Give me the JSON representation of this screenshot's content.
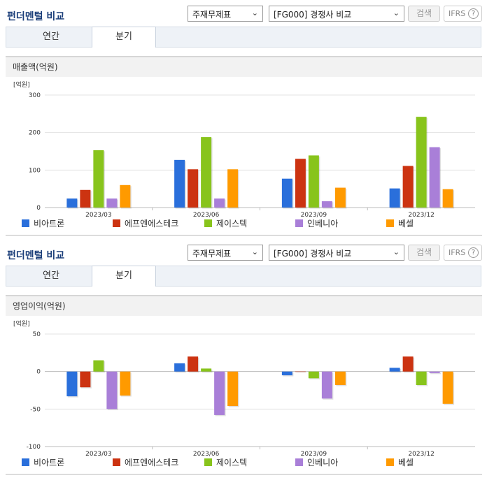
{
  "panels": [
    {
      "title": "펀더멘털 비교",
      "select1": "주재무제표",
      "select2": "[FG000] 경쟁사 비교",
      "search_label": "검색",
      "ifrs_label": "IFRS",
      "tabs": [
        "연간",
        "분기"
      ],
      "active_tab": "분기",
      "subtitle": "매출액(억원)"
    },
    {
      "title": "펀더멘털 비교",
      "select1": "주재무제표",
      "select2": "[FG000] 경쟁사 비교",
      "search_label": "검색",
      "ifrs_label": "IFRS",
      "tabs": [
        "연간",
        "분기"
      ],
      "active_tab": "분기",
      "subtitle": "영업이익(억원)"
    }
  ],
  "chart_data": [
    {
      "type": "bar",
      "unit_label": "[억원]",
      "categories": [
        "2023/03",
        "2023/06",
        "2023/09",
        "2023/12"
      ],
      "ylim": [
        0,
        300
      ],
      "yticks": [
        0,
        100,
        200,
        300
      ],
      "grid": true,
      "legend_position": "bottom",
      "series": [
        {
          "name": "비아트론",
          "color": "#2a6fdb",
          "values": [
            24,
            127,
            77,
            51
          ]
        },
        {
          "name": "에프엔에스테크",
          "color": "#cc3311",
          "values": [
            47,
            102,
            130,
            111
          ]
        },
        {
          "name": "제이스텍",
          "color": "#88c41c",
          "values": [
            153,
            188,
            139,
            242
          ]
        },
        {
          "name": "인베니아",
          "color": "#a97fd8",
          "values": [
            24,
            24,
            17,
            161
          ]
        },
        {
          "name": "베셀",
          "color": "#ff9a00",
          "values": [
            60,
            102,
            53,
            49
          ]
        }
      ]
    },
    {
      "type": "bar",
      "unit_label": "[억원]",
      "categories": [
        "2023/03",
        "2023/06",
        "2023/09",
        "2023/12"
      ],
      "ylim": [
        -100,
        50
      ],
      "yticks": [
        -100,
        -50,
        0,
        50
      ],
      "grid": true,
      "legend_position": "bottom",
      "series": [
        {
          "name": "비아트론",
          "color": "#2a6fdb",
          "values": [
            -33,
            11,
            -5,
            5
          ]
        },
        {
          "name": "에프엔에스테크",
          "color": "#cc3311",
          "values": [
            -21,
            20,
            0,
            20
          ]
        },
        {
          "name": "제이스텍",
          "color": "#88c41c",
          "values": [
            15,
            4,
            -9,
            -18
          ]
        },
        {
          "name": "인베니아",
          "color": "#a97fd8",
          "values": [
            -50,
            -58,
            -36,
            -2
          ]
        },
        {
          "name": "베셀",
          "color": "#ff9a00",
          "values": [
            -32,
            -46,
            -18,
            -43
          ]
        }
      ]
    }
  ]
}
